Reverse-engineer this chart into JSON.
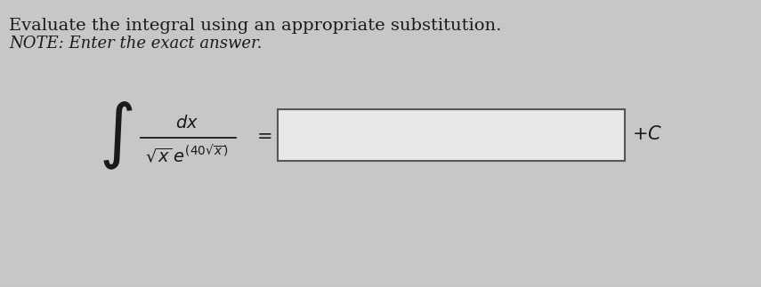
{
  "title_line1": "Evaluate the integral using an appropriate substitution.",
  "title_line2": "NOTE: Enter the exact answer.",
  "background_color": "#c8c8c8",
  "text_color": "#1a1a1a",
  "box_facecolor": "#e8e8e8",
  "box_edgecolor": "#555555",
  "figsize": [
    8.55,
    3.23
  ],
  "dpi": 100,
  "title1_fontsize": 14,
  "title2_fontsize": 13,
  "integral_fontsize": 40,
  "math_fontsize": 14,
  "equals_fontsize": 15,
  "plusc_fontsize": 15
}
